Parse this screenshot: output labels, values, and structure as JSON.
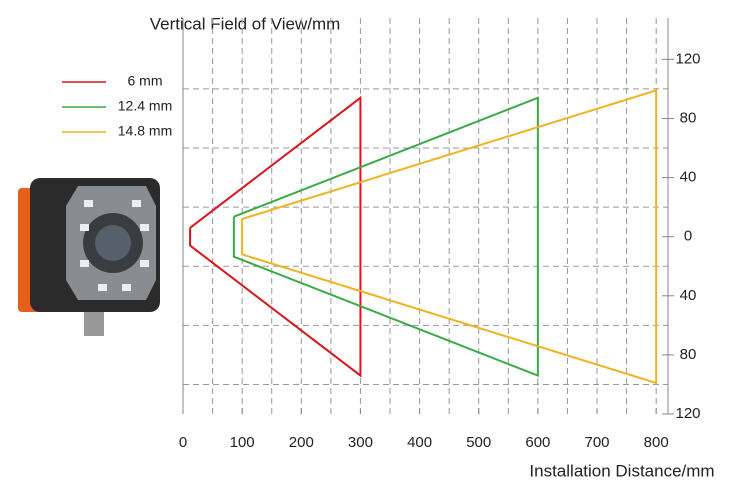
{
  "chart_data": {
    "type": "line",
    "y_label": "Vertical Field of View/mm",
    "x_label": "Installation Distance/mm",
    "xlim": [
      0,
      820
    ],
    "ylim": [
      -120,
      148
    ],
    "xticks": [
      0,
      100,
      200,
      300,
      400,
      500,
      600,
      700,
      800
    ],
    "yticks": [
      {
        "value": -120,
        "label": "120"
      },
      {
        "value": -80,
        "label": "80"
      },
      {
        "value": -40,
        "label": "40"
      },
      0,
      40,
      80,
      120
    ],
    "xgrid": [
      50,
      100,
      150,
      200,
      250,
      300,
      350,
      400,
      450,
      500,
      550,
      600,
      650,
      700,
      750,
      800
    ],
    "ygrid": [
      -100,
      -60,
      -20,
      20,
      60,
      100
    ],
    "grid": true,
    "legend": "upper-left",
    "series": [
      {
        "name": "6 mm",
        "color": "#d9141b",
        "x": [
          12,
          300,
          300,
          12,
          12
        ],
        "values": [
          6,
          94,
          -94,
          -6,
          6
        ]
      },
      {
        "name": "12.4 mm",
        "color": "#3aaa48",
        "x": [
          86,
          600,
          600,
          86,
          86
        ],
        "values": [
          13.5,
          94,
          -94,
          -13.5,
          13.5
        ]
      },
      {
        "name": "14.8 mm",
        "color": "#f0b323",
        "x": [
          100,
          800,
          800,
          100,
          100
        ],
        "values": [
          12,
          99,
          -99,
          -12,
          12
        ]
      }
    ]
  }
}
